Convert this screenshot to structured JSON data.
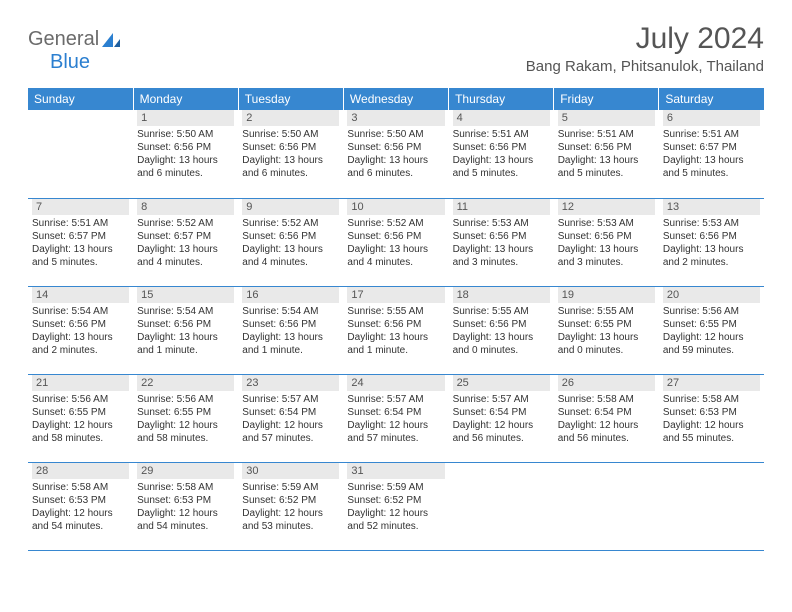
{
  "logo": {
    "part1": "General",
    "part2": "Blue"
  },
  "title": "July 2024",
  "location": "Bang Rakam, Phitsanulok, Thailand",
  "colors": {
    "header_bg": "#3787d0",
    "header_text": "#ffffff",
    "daynum_bg": "#e9e9e9",
    "border": "#3787d0",
    "logo_gray": "#6b6b6b",
    "logo_blue": "#2b7fd0"
  },
  "weekdays": [
    "Sunday",
    "Monday",
    "Tuesday",
    "Wednesday",
    "Thursday",
    "Friday",
    "Saturday"
  ],
  "weeks": [
    [
      {
        "day": "",
        "sunrise": "",
        "sunset": "",
        "daylight": ""
      },
      {
        "day": "1",
        "sunrise": "Sunrise: 5:50 AM",
        "sunset": "Sunset: 6:56 PM",
        "daylight": "Daylight: 13 hours and 6 minutes."
      },
      {
        "day": "2",
        "sunrise": "Sunrise: 5:50 AM",
        "sunset": "Sunset: 6:56 PM",
        "daylight": "Daylight: 13 hours and 6 minutes."
      },
      {
        "day": "3",
        "sunrise": "Sunrise: 5:50 AM",
        "sunset": "Sunset: 6:56 PM",
        "daylight": "Daylight: 13 hours and 6 minutes."
      },
      {
        "day": "4",
        "sunrise": "Sunrise: 5:51 AM",
        "sunset": "Sunset: 6:56 PM",
        "daylight": "Daylight: 13 hours and 5 minutes."
      },
      {
        "day": "5",
        "sunrise": "Sunrise: 5:51 AM",
        "sunset": "Sunset: 6:56 PM",
        "daylight": "Daylight: 13 hours and 5 minutes."
      },
      {
        "day": "6",
        "sunrise": "Sunrise: 5:51 AM",
        "sunset": "Sunset: 6:57 PM",
        "daylight": "Daylight: 13 hours and 5 minutes."
      }
    ],
    [
      {
        "day": "7",
        "sunrise": "Sunrise: 5:51 AM",
        "sunset": "Sunset: 6:57 PM",
        "daylight": "Daylight: 13 hours and 5 minutes."
      },
      {
        "day": "8",
        "sunrise": "Sunrise: 5:52 AM",
        "sunset": "Sunset: 6:57 PM",
        "daylight": "Daylight: 13 hours and 4 minutes."
      },
      {
        "day": "9",
        "sunrise": "Sunrise: 5:52 AM",
        "sunset": "Sunset: 6:56 PM",
        "daylight": "Daylight: 13 hours and 4 minutes."
      },
      {
        "day": "10",
        "sunrise": "Sunrise: 5:52 AM",
        "sunset": "Sunset: 6:56 PM",
        "daylight": "Daylight: 13 hours and 4 minutes."
      },
      {
        "day": "11",
        "sunrise": "Sunrise: 5:53 AM",
        "sunset": "Sunset: 6:56 PM",
        "daylight": "Daylight: 13 hours and 3 minutes."
      },
      {
        "day": "12",
        "sunrise": "Sunrise: 5:53 AM",
        "sunset": "Sunset: 6:56 PM",
        "daylight": "Daylight: 13 hours and 3 minutes."
      },
      {
        "day": "13",
        "sunrise": "Sunrise: 5:53 AM",
        "sunset": "Sunset: 6:56 PM",
        "daylight": "Daylight: 13 hours and 2 minutes."
      }
    ],
    [
      {
        "day": "14",
        "sunrise": "Sunrise: 5:54 AM",
        "sunset": "Sunset: 6:56 PM",
        "daylight": "Daylight: 13 hours and 2 minutes."
      },
      {
        "day": "15",
        "sunrise": "Sunrise: 5:54 AM",
        "sunset": "Sunset: 6:56 PM",
        "daylight": "Daylight: 13 hours and 1 minute."
      },
      {
        "day": "16",
        "sunrise": "Sunrise: 5:54 AM",
        "sunset": "Sunset: 6:56 PM",
        "daylight": "Daylight: 13 hours and 1 minute."
      },
      {
        "day": "17",
        "sunrise": "Sunrise: 5:55 AM",
        "sunset": "Sunset: 6:56 PM",
        "daylight": "Daylight: 13 hours and 1 minute."
      },
      {
        "day": "18",
        "sunrise": "Sunrise: 5:55 AM",
        "sunset": "Sunset: 6:56 PM",
        "daylight": "Daylight: 13 hours and 0 minutes."
      },
      {
        "day": "19",
        "sunrise": "Sunrise: 5:55 AM",
        "sunset": "Sunset: 6:55 PM",
        "daylight": "Daylight: 13 hours and 0 minutes."
      },
      {
        "day": "20",
        "sunrise": "Sunrise: 5:56 AM",
        "sunset": "Sunset: 6:55 PM",
        "daylight": "Daylight: 12 hours and 59 minutes."
      }
    ],
    [
      {
        "day": "21",
        "sunrise": "Sunrise: 5:56 AM",
        "sunset": "Sunset: 6:55 PM",
        "daylight": "Daylight: 12 hours and 58 minutes."
      },
      {
        "day": "22",
        "sunrise": "Sunrise: 5:56 AM",
        "sunset": "Sunset: 6:55 PM",
        "daylight": "Daylight: 12 hours and 58 minutes."
      },
      {
        "day": "23",
        "sunrise": "Sunrise: 5:57 AM",
        "sunset": "Sunset: 6:54 PM",
        "daylight": "Daylight: 12 hours and 57 minutes."
      },
      {
        "day": "24",
        "sunrise": "Sunrise: 5:57 AM",
        "sunset": "Sunset: 6:54 PM",
        "daylight": "Daylight: 12 hours and 57 minutes."
      },
      {
        "day": "25",
        "sunrise": "Sunrise: 5:57 AM",
        "sunset": "Sunset: 6:54 PM",
        "daylight": "Daylight: 12 hours and 56 minutes."
      },
      {
        "day": "26",
        "sunrise": "Sunrise: 5:58 AM",
        "sunset": "Sunset: 6:54 PM",
        "daylight": "Daylight: 12 hours and 56 minutes."
      },
      {
        "day": "27",
        "sunrise": "Sunrise: 5:58 AM",
        "sunset": "Sunset: 6:53 PM",
        "daylight": "Daylight: 12 hours and 55 minutes."
      }
    ],
    [
      {
        "day": "28",
        "sunrise": "Sunrise: 5:58 AM",
        "sunset": "Sunset: 6:53 PM",
        "daylight": "Daylight: 12 hours and 54 minutes."
      },
      {
        "day": "29",
        "sunrise": "Sunrise: 5:58 AM",
        "sunset": "Sunset: 6:53 PM",
        "daylight": "Daylight: 12 hours and 54 minutes."
      },
      {
        "day": "30",
        "sunrise": "Sunrise: 5:59 AM",
        "sunset": "Sunset: 6:52 PM",
        "daylight": "Daylight: 12 hours and 53 minutes."
      },
      {
        "day": "31",
        "sunrise": "Sunrise: 5:59 AM",
        "sunset": "Sunset: 6:52 PM",
        "daylight": "Daylight: 12 hours and 52 minutes."
      },
      {
        "day": "",
        "sunrise": "",
        "sunset": "",
        "daylight": ""
      },
      {
        "day": "",
        "sunrise": "",
        "sunset": "",
        "daylight": ""
      },
      {
        "day": "",
        "sunrise": "",
        "sunset": "",
        "daylight": ""
      }
    ]
  ]
}
